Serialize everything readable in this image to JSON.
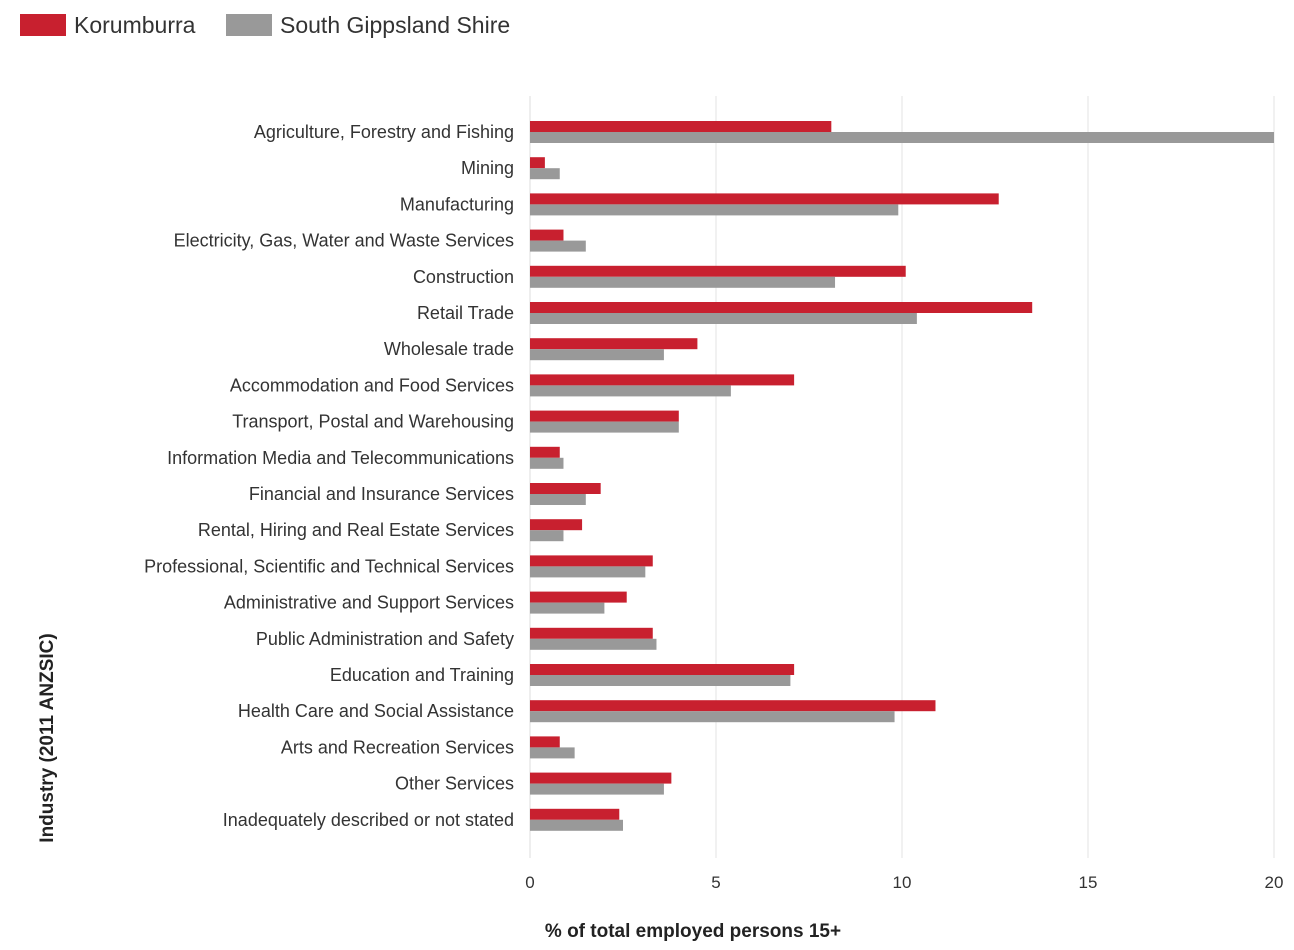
{
  "chart_data": {
    "type": "bar",
    "orientation": "horizontal",
    "title": "",
    "xlabel": "% of total employed persons 15+",
    "ylabel": "Industry (2011 ANZSIC)",
    "xlim": [
      0,
      20
    ],
    "xticks": [
      0,
      5,
      10,
      15,
      20
    ],
    "grid": true,
    "legend_position": "top-left",
    "categories": [
      "Agriculture, Forestry and Fishing",
      "Mining",
      "Manufacturing",
      "Electricity, Gas, Water and Waste Services",
      "Construction",
      "Retail Trade",
      "Wholesale trade",
      "Accommodation and Food Services",
      "Transport, Postal and Warehousing",
      "Information Media and Telecommunications",
      "Financial and Insurance Services",
      "Rental, Hiring and Real Estate Services",
      "Professional, Scientific and Technical Services",
      "Administrative and Support Services",
      "Public Administration and Safety",
      "Education and Training",
      "Health Care and Social Assistance",
      "Arts and Recreation Services",
      "Other Services",
      "Inadequately described or not stated"
    ],
    "series": [
      {
        "name": "Korumburra",
        "color": "#c8202f",
        "values": [
          8.1,
          0.4,
          12.6,
          0.9,
          10.1,
          13.5,
          4.5,
          7.1,
          4.0,
          0.8,
          1.9,
          1.4,
          3.3,
          2.6,
          3.3,
          7.1,
          10.9,
          0.8,
          3.8,
          2.4
        ]
      },
      {
        "name": "South Gippsland Shire",
        "color": "#999999",
        "values": [
          20.0,
          0.8,
          9.9,
          1.5,
          8.2,
          10.4,
          3.6,
          5.4,
          4.0,
          0.9,
          1.5,
          0.9,
          3.1,
          2.0,
          3.4,
          7.0,
          9.8,
          1.2,
          3.6,
          2.5
        ]
      }
    ]
  }
}
